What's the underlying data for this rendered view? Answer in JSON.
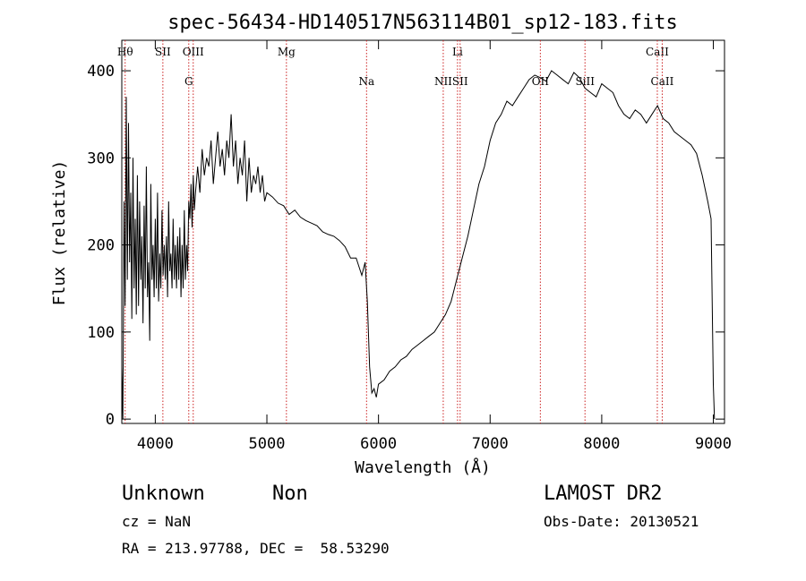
{
  "chart_data": {
    "type": "line",
    "title": "spec-56434-HD140517N563114B01_sp12-183.fits",
    "xlabel": "Wavelength (Å)",
    "ylabel": "Flux (relative)",
    "xlim": [
      3700,
      9100
    ],
    "ylim": [
      -5,
      435
    ],
    "xticks": [
      4000,
      5000,
      6000,
      7000,
      8000,
      9000
    ],
    "yticks": [
      0,
      100,
      200,
      300,
      400
    ],
    "grid": false,
    "series": [
      {
        "color": "#000000",
        "x": [
          3700,
          3710,
          3720,
          3730,
          3740,
          3750,
          3760,
          3770,
          3780,
          3790,
          3800,
          3810,
          3820,
          3830,
          3840,
          3850,
          3860,
          3870,
          3880,
          3890,
          3900,
          3910,
          3920,
          3930,
          3940,
          3950,
          3960,
          3970,
          3980,
          3990,
          4000,
          4010,
          4020,
          4030,
          4040,
          4050,
          4060,
          4070,
          4080,
          4090,
          4100,
          4110,
          4120,
          4130,
          4140,
          4150,
          4160,
          4170,
          4180,
          4190,
          4200,
          4210,
          4220,
          4230,
          4240,
          4250,
          4260,
          4270,
          4280,
          4290,
          4300,
          4310,
          4320,
          4330,
          4340,
          4350,
          4360,
          4380,
          4400,
          4420,
          4440,
          4460,
          4480,
          4500,
          4520,
          4540,
          4560,
          4580,
          4600,
          4620,
          4640,
          4660,
          4680,
          4700,
          4720,
          4740,
          4760,
          4780,
          4800,
          4820,
          4840,
          4860,
          4880,
          4900,
          4920,
          4940,
          4960,
          4980,
          5000,
          5050,
          5100,
          5150,
          5200,
          5250,
          5300,
          5350,
          5400,
          5450,
          5500,
          5550,
          5600,
          5650,
          5700,
          5750,
          5800,
          5850,
          5880,
          5900,
          5920,
          5940,
          5960,
          5980,
          6000,
          6050,
          6100,
          6150,
          6200,
          6250,
          6300,
          6350,
          6400,
          6450,
          6500,
          6550,
          6600,
          6650,
          6700,
          6750,
          6800,
          6850,
          6900,
          6950,
          7000,
          7050,
          7100,
          7150,
          7200,
          7250,
          7300,
          7350,
          7400,
          7450,
          7500,
          7550,
          7600,
          7650,
          7700,
          7750,
          7800,
          7850,
          7900,
          7950,
          8000,
          8050,
          8100,
          8150,
          8200,
          8250,
          8300,
          8350,
          8400,
          8450,
          8500,
          8550,
          8600,
          8650,
          8700,
          8750,
          8800,
          8850,
          8900,
          8950,
          8980,
          9000,
          9010
        ],
        "y": [
          60,
          0,
          250,
          130,
          370,
          160,
          340,
          180,
          260,
          115,
          300,
          150,
          230,
          120,
          280,
          130,
          250,
          160,
          210,
          110,
          245,
          150,
          290,
          140,
          180,
          90,
          270,
          160,
          200,
          140,
          230,
          150,
          260,
          135,
          190,
          150,
          240,
          165,
          200,
          160,
          210,
          140,
          250,
          170,
          190,
          150,
          230,
          160,
          200,
          150,
          210,
          160,
          220,
          140,
          200,
          150,
          240,
          160,
          200,
          170,
          250,
          230,
          270,
          220,
          280,
          240,
          260,
          290,
          260,
          310,
          280,
          300,
          290,
          320,
          270,
          300,
          330,
          290,
          310,
          280,
          320,
          300,
          350,
          290,
          320,
          270,
          300,
          280,
          320,
          250,
          300,
          260,
          280,
          270,
          290,
          260,
          280,
          250,
          260,
          255,
          248,
          245,
          235,
          240,
          232,
          228,
          225,
          222,
          215,
          212,
          210,
          205,
          198,
          185,
          185,
          165,
          180,
          135,
          60,
          30,
          35,
          25,
          40,
          45,
          55,
          60,
          68,
          72,
          80,
          85,
          90,
          95,
          100,
          110,
          120,
          135,
          160,
          185,
          210,
          240,
          270,
          290,
          320,
          340,
          350,
          365,
          360,
          370,
          380,
          390,
          395,
          392,
          388,
          400,
          395,
          390,
          385,
          398,
          392,
          380,
          375,
          370,
          385,
          380,
          375,
          360,
          350,
          345,
          355,
          350,
          340,
          350,
          360,
          345,
          340,
          330,
          325,
          320,
          315,
          305,
          280,
          250,
          230,
          40,
          0
        ]
      }
    ],
    "lines": [
      {
        "x": 3730,
        "top": "Hθ",
        "bottom": ""
      },
      {
        "x": 4068,
        "top": "SII",
        "bottom": ""
      },
      {
        "x": 4300,
        "top": "",
        "bottom": "G"
      },
      {
        "x": 4340,
        "top": "OIII",
        "bottom": ""
      },
      {
        "x": 5175,
        "top": "Mg",
        "bottom": ""
      },
      {
        "x": 5893,
        "top": "",
        "bottom": "Na"
      },
      {
        "x": 6580,
        "top": "",
        "bottom": "NII"
      },
      {
        "x": 6708,
        "top": "Li",
        "bottom": ""
      },
      {
        "x": 6731,
        "top": "",
        "bottom": "SII"
      },
      {
        "x": 7450,
        "top": "",
        "bottom": "OII"
      },
      {
        "x": 7850,
        "top": "",
        "bottom": "SiII"
      },
      {
        "x": 8498,
        "top": "CaII",
        "bottom": ""
      },
      {
        "x": 8542,
        "top": "",
        "bottom": "CaII"
      }
    ],
    "line_color": "#cc2222"
  },
  "info": {
    "object_class": "Unknown",
    "object_subclass": "Non",
    "survey": "LAMOST DR2",
    "cz": "cz = NaN",
    "obs_date": "Obs-Date: 20130521",
    "coords": "RA = 213.97788, DEC =  58.53290"
  }
}
